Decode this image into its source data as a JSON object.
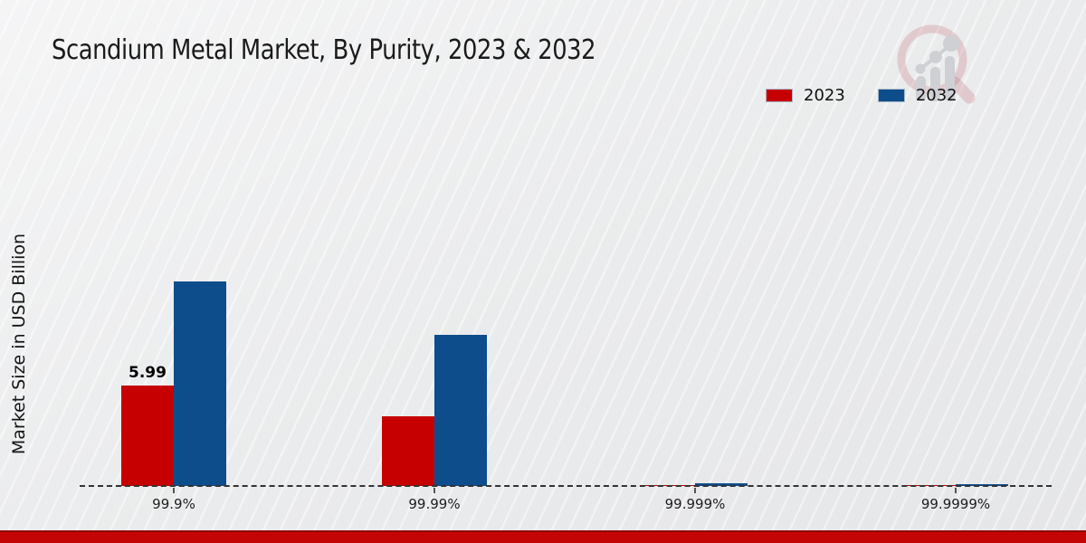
{
  "chart_data": {
    "type": "bar",
    "title": "Scandium Metal Market, By Purity, 2023 & 2032",
    "categories": [
      "99.9%",
      "99.99%",
      "99.999%",
      "99.9999%"
    ],
    "series": [
      {
        "name": "2023",
        "color": "#c60000",
        "values": [
          5.99,
          4.15,
          0.05,
          0.05
        ]
      },
      {
        "name": "2032",
        "color": "#0d4d8c",
        "values": [
          12.2,
          9.0,
          0.15,
          0.13
        ]
      }
    ],
    "xlabel": "",
    "ylabel": "Market Size in USD Billion",
    "ylim": [
      0,
      13.5
    ],
    "grid": false,
    "legend_position": "top-right",
    "baseline_style": "dashed",
    "bar_labels": [
      {
        "series": "2023",
        "category": "99.9%",
        "text": "5.99"
      }
    ]
  },
  "legend": {
    "items": [
      {
        "label": "2023",
        "color": "#c60000"
      },
      {
        "label": "2032",
        "color": "#0d4d8c"
      }
    ]
  },
  "footer": {
    "accent_color": "#c40505"
  },
  "icons": {
    "watermark": "magnifier-growth-chart-logo"
  }
}
